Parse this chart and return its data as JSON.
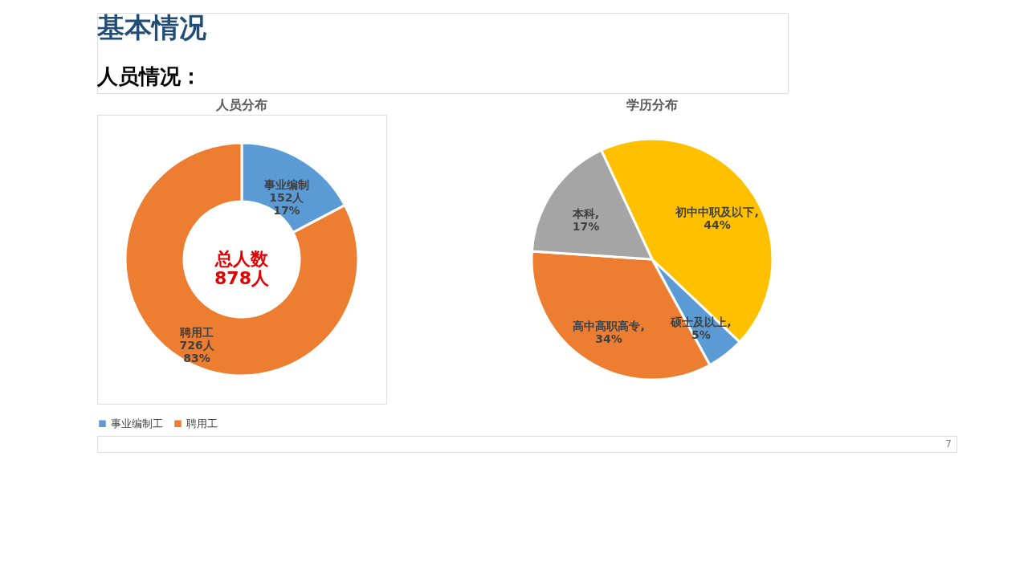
{
  "chart_data": [
    {
      "type": "donut",
      "title": "人员分布",
      "categories": [
        "事业编制工",
        "聘用工"
      ],
      "values": [
        152,
        726
      ],
      "colors": [
        "#5b9bd5",
        "#ed7d31"
      ],
      "value_labels": [
        "事业编制\n152人\n17%",
        "聘用工\n726人\n83%"
      ],
      "legend": "bottom",
      "annotations": [
        "基本情况",
        "人员情况：",
        "总人数\n878人",
        "7"
      ]
    },
    {
      "type": "pie",
      "title": "学历分布",
      "categories": [
        "初中中职及以下",
        "硕士及以上",
        "高中高职高专",
        "本科"
      ],
      "values": [
        44,
        5,
        34,
        17
      ],
      "colors": [
        "#ffc000",
        "#5b9bd5",
        "#ed7d31",
        "#a5a5a5"
      ],
      "value_labels": [
        ",\n44%",
        ",\n5%",
        ",\n34%",
        ",\n17%"
      ]
    }
  ]
}
